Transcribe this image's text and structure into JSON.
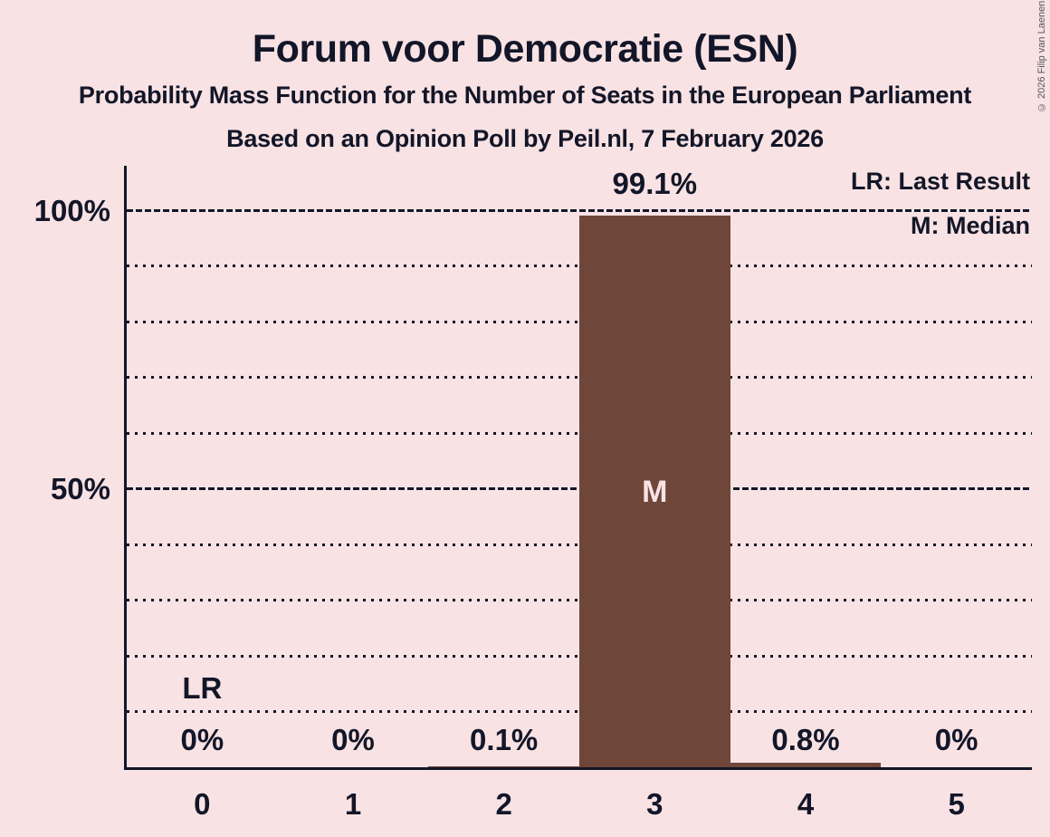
{
  "page": {
    "title": "Forum voor Democratie (ESN)",
    "subtitle": "Probability Mass Function for the Number of Seats in the European Parliament",
    "poll_line": "Based on an Opinion Poll by Peil.nl, 7 February 2026",
    "copyright": "© 2026 Filip van Laenen"
  },
  "legend": {
    "last_result": "LR: Last Result",
    "median": "M: Median"
  },
  "colors": {
    "background": "#F9E2E3",
    "text": "#121628",
    "bar": "#6F463A",
    "bar_label": "#F9E2E3",
    "copyright": "#555560"
  },
  "chart_data": {
    "type": "bar",
    "title": "Forum voor Democratie (ESN)",
    "subtitle": "Probability Mass Function for the Number of Seats in the European Parliament",
    "xlabel": "",
    "ylabel": "",
    "categories": [
      "0",
      "1",
      "2",
      "3",
      "4",
      "5"
    ],
    "values": [
      0,
      0,
      0.1,
      99.1,
      0.8,
      0
    ],
    "value_labels": [
      "0%",
      "0%",
      "0.1%",
      "99.1%",
      "0.8%",
      "0%"
    ],
    "ylim": [
      0,
      100
    ],
    "y_ticks": [
      {
        "value": 100,
        "label": "100%"
      },
      {
        "value": 50,
        "label": "50%"
      }
    ],
    "major_gridlines": [
      100,
      50
    ],
    "minor_gridlines": [
      90,
      80,
      70,
      60,
      40,
      30,
      20,
      10
    ],
    "grid": "horizontal dotted",
    "legend_position": "top-right",
    "median_category": "3",
    "median_marker": "M",
    "last_result_category": "0",
    "last_result_marker": "LR"
  }
}
